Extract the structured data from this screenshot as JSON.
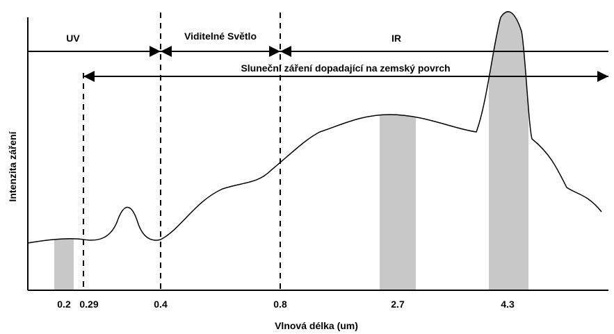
{
  "regions": {
    "uv": "UV",
    "visible": "Viditelné Světlo",
    "ir": "IR"
  },
  "surface_label": "Sluneční záření dopadající na zemský povrch",
  "y_axis_label": "Intenzita záření",
  "x_axis_label": "Vlnová délka (um)",
  "x_ticks": [
    "0.2",
    "0.29",
    "0.4",
    "0.8",
    "2.7",
    "4.3"
  ]
}
